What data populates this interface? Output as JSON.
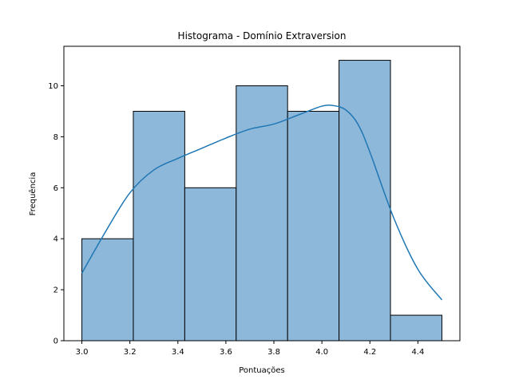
{
  "chart_data": {
    "type": "bar",
    "title": "Histograma - Domínio Extraversion",
    "xlabel": "Pontuações",
    "ylabel": "Frequência",
    "bins": [
      {
        "x0": 3.0,
        "x1": 3.2143,
        "count": 4
      },
      {
        "x0": 3.2143,
        "x1": 3.4286,
        "count": 9
      },
      {
        "x0": 3.4286,
        "x1": 3.6429,
        "count": 6
      },
      {
        "x0": 3.6429,
        "x1": 3.8571,
        "count": 10
      },
      {
        "x0": 3.8571,
        "x1": 4.0714,
        "count": 9
      },
      {
        "x0": 4.0714,
        "x1": 4.2857,
        "count": 11
      },
      {
        "x0": 4.2857,
        "x1": 4.5,
        "count": 1
      }
    ],
    "kde": {
      "x": [
        3.0,
        3.1,
        3.2,
        3.3,
        3.4,
        3.5,
        3.6,
        3.7,
        3.8,
        3.9,
        4.0,
        4.05,
        4.1,
        4.15,
        4.2,
        4.3,
        4.4,
        4.5
      ],
      "y": [
        2.65,
        4.3,
        5.8,
        6.7,
        7.15,
        7.55,
        7.95,
        8.3,
        8.5,
        8.85,
        9.2,
        9.22,
        9.05,
        8.5,
        7.4,
        4.8,
        2.8,
        1.6
      ]
    },
    "xlim": [
      2.925,
      4.575
    ],
    "ylim": [
      0,
      11.55
    ],
    "xticks": [
      "3.0",
      "3.2",
      "3.4",
      "3.6",
      "3.8",
      "4.0",
      "4.2",
      "4.4"
    ],
    "xtick_values": [
      3.0,
      3.2,
      3.4,
      3.6,
      3.8,
      4.0,
      4.2,
      4.4
    ],
    "yticks": [
      "0",
      "2",
      "4",
      "6",
      "8",
      "10"
    ],
    "ytick_values": [
      0,
      2,
      4,
      6,
      8,
      10
    ],
    "bar_color": "#8db8da",
    "bar_edge": "#000000",
    "line_color": "#1f77b4",
    "grid": false
  }
}
